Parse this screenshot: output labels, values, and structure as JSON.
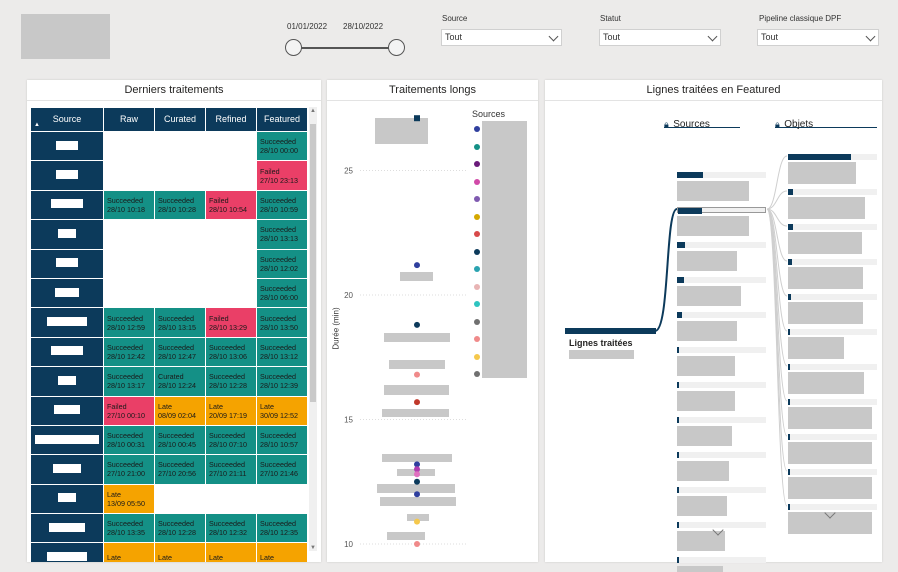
{
  "filters": {
    "date_start": "01/01/2022",
    "date_end": "28/10/2022",
    "source_label": "Source",
    "source_value": "Tout",
    "statut_label": "Statut",
    "statut_value": "Tout",
    "pipeline_label": "Pipeline classique DPF",
    "pipeline_value": "Tout"
  },
  "left_panel": {
    "title": "Derniers traitements",
    "columns": [
      "Source",
      "Raw",
      "Curated",
      "Refined",
      "Featured"
    ],
    "rows": [
      {
        "w": 22,
        "cells": [
          null,
          null,
          null,
          {
            "s": "Succeeded",
            "d": "28/10 00:00",
            "c": "green"
          }
        ]
      },
      {
        "w": 22,
        "cells": [
          null,
          null,
          null,
          {
            "s": "Failed",
            "d": "27/10 23:13",
            "c": "red"
          }
        ]
      },
      {
        "w": 32,
        "cells": [
          {
            "s": "Succeeded",
            "d": "28/10 10:18",
            "c": "green"
          },
          {
            "s": "Succeeded",
            "d": "28/10 10:28",
            "c": "green"
          },
          {
            "s": "Failed",
            "d": "28/10 10:54",
            "c": "red"
          },
          {
            "s": "Succeeded",
            "d": "28/10 10:59",
            "c": "green"
          }
        ]
      },
      {
        "w": 18,
        "cells": [
          null,
          null,
          null,
          {
            "s": "Succeeded",
            "d": "28/10 13:13",
            "c": "green"
          }
        ]
      },
      {
        "w": 22,
        "cells": [
          null,
          null,
          null,
          {
            "s": "Succeeded",
            "d": "28/10 12:02",
            "c": "green"
          }
        ]
      },
      {
        "w": 24,
        "cells": [
          null,
          null,
          null,
          {
            "s": "Succeeded",
            "d": "28/10 06:00",
            "c": "green"
          }
        ]
      },
      {
        "w": 40,
        "cells": [
          {
            "s": "Succeeded",
            "d": "28/10 12:59",
            "c": "green"
          },
          {
            "s": "Succeeded",
            "d": "28/10 13:15",
            "c": "green"
          },
          {
            "s": "Failed",
            "d": "28/10 13:29",
            "c": "red"
          },
          {
            "s": "Succeeded",
            "d": "28/10 13:50",
            "c": "green"
          }
        ]
      },
      {
        "w": 32,
        "cells": [
          {
            "s": "Succeeded",
            "d": "28/10 12:42",
            "c": "green"
          },
          {
            "s": "Succeeded",
            "d": "28/10 12:47",
            "c": "green"
          },
          {
            "s": "Succeeded",
            "d": "28/10 13:06",
            "c": "green"
          },
          {
            "s": "Succeeded",
            "d": "28/10 13:12",
            "c": "green"
          }
        ]
      },
      {
        "w": 18,
        "cells": [
          {
            "s": "Succeeded",
            "d": "28/10 13:17",
            "c": "green"
          },
          {
            "s": "Curated",
            "d": "28/10 12:24",
            "c": "green"
          },
          {
            "s": "Succeeded",
            "d": "28/10 12:28",
            "c": "green"
          },
          {
            "s": "Succeeded",
            "d": "28/10 12:39",
            "c": "green"
          }
        ]
      },
      {
        "w": 26,
        "cells": [
          {
            "s": "Failed",
            "d": "27/10 00:10",
            "c": "red"
          },
          {
            "s": "Late",
            "d": "08/09 02:04",
            "c": "orange"
          },
          {
            "s": "Late",
            "d": "20/09 17:19",
            "c": "orange"
          },
          {
            "s": "Late",
            "d": "30/09 12:52",
            "c": "orange"
          }
        ]
      },
      {
        "w": 64,
        "cells": [
          {
            "s": "Succeeded",
            "d": "28/10 00:31",
            "c": "green"
          },
          {
            "s": "Succeeded",
            "d": "28/10 00:45",
            "c": "green"
          },
          {
            "s": "Succeeded",
            "d": "28/10 07:10",
            "c": "green"
          },
          {
            "s": "Succeeded",
            "d": "28/10 10:57",
            "c": "green"
          }
        ]
      },
      {
        "w": 28,
        "cells": [
          {
            "s": "Succeeded",
            "d": "27/10 21:00",
            "c": "green"
          },
          {
            "s": "Succeeded",
            "d": "27/10 20:56",
            "c": "green"
          },
          {
            "s": "Succeeded",
            "d": "27/10 21:11",
            "c": "green"
          },
          {
            "s": "Succeeded",
            "d": "27/10 21:46",
            "c": "green"
          }
        ]
      },
      {
        "w": 18,
        "cells": [
          {
            "s": "Late",
            "d": "13/09 05:50",
            "c": "orange"
          },
          null,
          null,
          null
        ]
      },
      {
        "w": 36,
        "cells": [
          {
            "s": "Succeeded",
            "d": "28/10 13:35",
            "c": "green"
          },
          {
            "s": "Succeeded",
            "d": "28/10 12:28",
            "c": "green"
          },
          {
            "s": "Succeeded",
            "d": "28/10 12:32",
            "c": "green"
          },
          {
            "s": "Succeeded",
            "d": "28/10 12:35",
            "c": "green"
          }
        ]
      },
      {
        "w": 40,
        "cells": [
          {
            "s": "Late",
            "d": "",
            "c": "orange"
          },
          {
            "s": "Late",
            "d": "",
            "c": "orange"
          },
          {
            "s": "Late",
            "d": "",
            "c": "orange"
          },
          {
            "s": "Late",
            "d": "",
            "c": "orange"
          }
        ]
      }
    ]
  },
  "middle_panel": {
    "title": "Traitements longs",
    "ylabel": "Durée (min)",
    "legend_title": "Sources",
    "chart_data": {
      "type": "scatter",
      "title": "Traitements longs",
      "ylabel": "Durée (min)",
      "ylim": [
        10,
        27
      ],
      "y_ticks": [
        10,
        15,
        20,
        25
      ],
      "points": [
        {
          "y": 27.1,
          "color": "#0c3a5b"
        },
        {
          "y": 21.2,
          "color": "#2f3f9e"
        },
        {
          "y": 18.8,
          "color": "#0c3a5b"
        },
        {
          "y": 16.8,
          "color": "#f08a8a"
        },
        {
          "y": 15.7,
          "color": "#c0392b"
        },
        {
          "y": 13.2,
          "color": "#2f3f9e"
        },
        {
          "y": 13.0,
          "color": "#b03cb0"
        },
        {
          "y": 12.8,
          "color": "#e070c0"
        },
        {
          "y": 12.5,
          "color": "#0c3a5b"
        },
        {
          "y": 12.0,
          "color": "#2f3f9e"
        },
        {
          "y": 10.9,
          "color": "#f5c84c"
        },
        {
          "y": 10.0,
          "color": "#f08a8a"
        }
      ],
      "legend_colors": [
        "#2f3f9e",
        "#149086",
        "#6a1b7a",
        "#d14aa8",
        "#7f5ab0",
        "#d4a800",
        "#d84a4a",
        "#0c3a5b",
        "#2aa3b0",
        "#e8b4b4",
        "#2ec4c0",
        "#707070",
        "#f08a8a",
        "#f5c84c",
        "#707070"
      ]
    }
  },
  "right_panel": {
    "title": "Lignes traitées en Featured",
    "col1": "Sources",
    "col2": "Objets",
    "root": "Lignes traitées",
    "sources": [
      0.43,
      0.4,
      0.14,
      0.11,
      0.08,
      0.04,
      0.03,
      0.02,
      0.01,
      0.01,
      0.01,
      0.01
    ],
    "objets": [
      0.7,
      0.06,
      0.05,
      0.04,
      0.03,
      0.02,
      0.02,
      0.01,
      0.01,
      0.01,
      0.01
    ]
  }
}
